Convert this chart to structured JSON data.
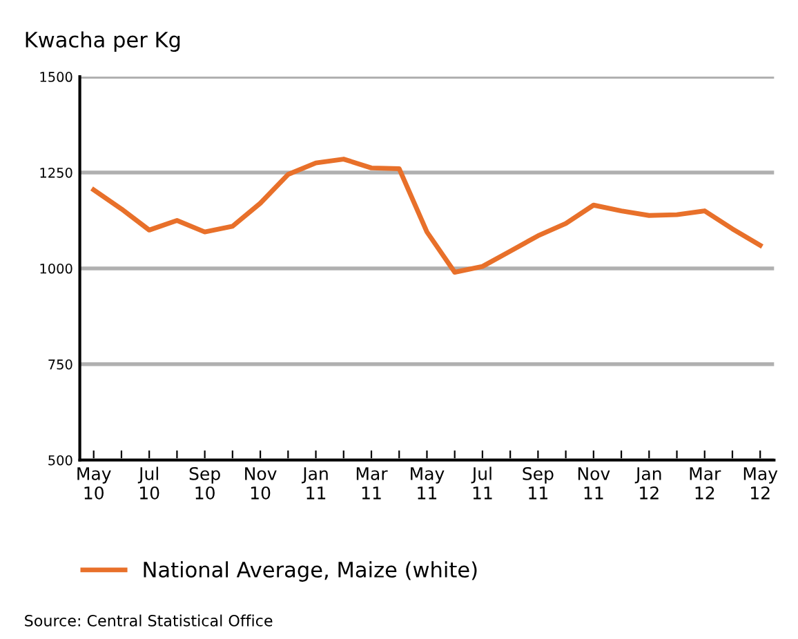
{
  "chart_data": {
    "type": "line",
    "ylabel": "Kwacha per Kg",
    "categories": [
      "May\n10",
      null,
      "Jul\n10",
      null,
      "Sep\n10",
      null,
      "Nov\n10",
      null,
      "Jan\n11",
      null,
      "Mar\n11",
      null,
      "May\n11",
      null,
      "Jul\n11",
      null,
      "Sep\n11",
      null,
      "Nov\n11",
      null,
      "Jan\n12",
      null,
      "Mar\n12",
      null,
      "May\n12"
    ],
    "series": [
      {
        "name": "National Average, Maize (white)",
        "color": "#e8702a",
        "values": [
          1205,
          1155,
          1100,
          1125,
          1095,
          1110,
          1170,
          1245,
          1275,
          1285,
          1262,
          1260,
          1095,
          990,
          1005,
          1045,
          1085,
          1117,
          1165,
          1150,
          1138,
          1140,
          1150,
          1103,
          1060
        ]
      }
    ],
    "ylim": [
      500,
      1500
    ],
    "yticks": [
      500,
      750,
      1000,
      1250,
      1500
    ],
    "grid": "y",
    "legend": "bottom",
    "marker": "none",
    "line_style": "solid",
    "annotations": [
      "Source: Central Statistical Office"
    ]
  }
}
